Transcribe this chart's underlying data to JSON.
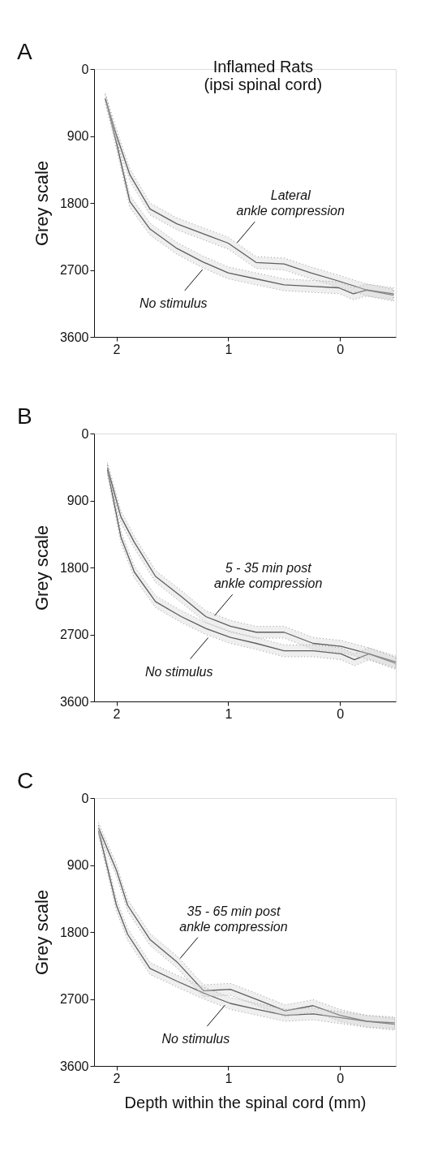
{
  "chart_data": [
    {
      "type": "line",
      "title": "A",
      "subtitle": "Inflamed Rats\n(ipsi spinal cord)",
      "ylabel": "Grey scale",
      "xlim": [
        2.2,
        -0.5
      ],
      "ylim": [
        3600,
        0
      ],
      "xticks": [
        2,
        1,
        0
      ],
      "yticks": [
        0,
        900,
        1800,
        2700,
        3600
      ],
      "grid": false,
      "legend": false,
      "marker": "none",
      "line_style": "solid",
      "annotations": [
        {
          "text": "Lateral\nankle compression",
          "x": 0.95,
          "y": 2380
        },
        {
          "text": "No stimulus",
          "x": 1.2,
          "y": 2650
        }
      ],
      "series": [
        {
          "color": "#222222",
          "x": [
            2.1,
            2.0,
            1.88,
            1.7,
            1.46,
            1.23,
            1.0,
            0.75,
            0.5,
            0.26,
            0.01,
            -0.24,
            -0.48
          ],
          "values": [
            400,
            890,
            1420,
            1880,
            2080,
            2210,
            2340,
            2600,
            2620,
            2740,
            2850,
            2970,
            3020
          ],
          "lower": [
            330,
            810,
            1340,
            1800,
            2000,
            2130,
            2260,
            2520,
            2540,
            2660,
            2770,
            2890,
            2940
          ],
          "upper": [
            470,
            970,
            1500,
            1960,
            2160,
            2290,
            2420,
            2680,
            2700,
            2820,
            2930,
            3050,
            3100
          ]
        },
        {
          "color": "#222222",
          "x": [
            2.09,
            2.0,
            1.88,
            1.7,
            1.46,
            1.23,
            1.0,
            0.75,
            0.5,
            0.26,
            0.01,
            -0.12,
            -0.24,
            -0.48
          ],
          "values": [
            440,
            990,
            1780,
            2150,
            2410,
            2590,
            2740,
            2820,
            2900,
            2920,
            2940,
            3020,
            2970,
            3040
          ],
          "lower": [
            370,
            910,
            1700,
            2070,
            2330,
            2510,
            2660,
            2740,
            2820,
            2840,
            2860,
            2940,
            2890,
            2960
          ],
          "upper": [
            510,
            1070,
            1860,
            2230,
            2490,
            2670,
            2820,
            2900,
            2980,
            3000,
            3020,
            3100,
            3050,
            3120
          ]
        }
      ]
    },
    {
      "type": "line",
      "title": "B",
      "ylabel": "Grey scale",
      "xlim": [
        2.2,
        -0.5
      ],
      "ylim": [
        3600,
        0
      ],
      "xticks": [
        2,
        1,
        0
      ],
      "yticks": [
        0,
        900,
        1800,
        2700,
        3600
      ],
      "grid": false,
      "legend": false,
      "marker": "none",
      "line_style": "solid",
      "annotations": [
        {
          "text": "5 - 35 min post\nankle compression",
          "x": 1.15,
          "y": 2490
        },
        {
          "text": "No stimulus",
          "x": 1.15,
          "y": 2700
        }
      ],
      "series": [
        {
          "color": "#222222",
          "x": [
            2.08,
            1.96,
            1.84,
            1.65,
            1.42,
            1.2,
            0.98,
            0.75,
            0.5,
            0.24,
            -0.01,
            -0.26,
            -0.5
          ],
          "values": [
            460,
            1120,
            1460,
            1920,
            2190,
            2460,
            2590,
            2670,
            2670,
            2820,
            2860,
            2960,
            3070
          ],
          "lower": [
            390,
            1040,
            1380,
            1840,
            2110,
            2380,
            2510,
            2590,
            2590,
            2740,
            2780,
            2880,
            2990
          ],
          "upper": [
            530,
            1200,
            1540,
            2000,
            2270,
            2540,
            2670,
            2750,
            2750,
            2900,
            2940,
            3040,
            3150
          ]
        },
        {
          "color": "#222222",
          "x": [
            2.08,
            1.96,
            1.84,
            1.65,
            1.42,
            1.2,
            0.98,
            0.75,
            0.5,
            0.24,
            -0.01,
            -0.13,
            -0.26,
            -0.5
          ],
          "values": [
            490,
            1390,
            1860,
            2260,
            2460,
            2620,
            2740,
            2820,
            2920,
            2920,
            2960,
            3040,
            2960,
            3090
          ],
          "lower": [
            420,
            1310,
            1780,
            2180,
            2380,
            2540,
            2660,
            2740,
            2840,
            2840,
            2880,
            2960,
            2880,
            3010
          ],
          "upper": [
            560,
            1470,
            1940,
            2340,
            2540,
            2700,
            2820,
            2900,
            3000,
            3000,
            3040,
            3120,
            3040,
            3170
          ]
        }
      ]
    },
    {
      "type": "line",
      "title": "C",
      "xlabel": "Depth within the spinal cord (mm)",
      "ylabel": "Grey scale",
      "xlim": [
        2.2,
        -0.5
      ],
      "ylim": [
        3600,
        0
      ],
      "xticks": [
        2,
        1,
        0
      ],
      "yticks": [
        0,
        900,
        1800,
        2700,
        3600
      ],
      "grid": false,
      "legend": false,
      "marker": "none",
      "line_style": "solid",
      "annotations": [
        {
          "text": "35 - 65 min post\nankle compression",
          "x": 1.46,
          "y": 2200
        },
        {
          "text": "No stimulus",
          "x": 1.0,
          "y": 2740
        }
      ],
      "series": [
        {
          "color": "#222222",
          "x": [
            2.16,
            2.0,
            1.9,
            1.7,
            1.46,
            1.22,
            0.98,
            0.74,
            0.49,
            0.24,
            0.0,
            -0.24,
            -0.49
          ],
          "values": [
            400,
            970,
            1440,
            1900,
            2200,
            2590,
            2570,
            2710,
            2860,
            2790,
            2920,
            3000,
            3020
          ],
          "lower": [
            330,
            890,
            1360,
            1820,
            2120,
            2510,
            2490,
            2630,
            2780,
            2710,
            2840,
            2920,
            2940
          ],
          "upper": [
            470,
            1050,
            1520,
            1980,
            2280,
            2670,
            2650,
            2790,
            2940,
            2870,
            3000,
            3080,
            3100
          ]
        },
        {
          "color": "#222222",
          "x": [
            2.16,
            2.0,
            1.9,
            1.7,
            1.46,
            1.22,
            0.98,
            0.74,
            0.49,
            0.24,
            0.0,
            -0.24,
            -0.49
          ],
          "values": [
            440,
            1440,
            1830,
            2290,
            2460,
            2620,
            2760,
            2840,
            2920,
            2900,
            2950,
            3000,
            3040
          ],
          "lower": [
            370,
            1360,
            1750,
            2210,
            2380,
            2540,
            2680,
            2760,
            2840,
            2820,
            2870,
            2920,
            2960
          ],
          "upper": [
            510,
            1520,
            1910,
            2370,
            2540,
            2700,
            2840,
            2920,
            3000,
            2980,
            3030,
            3080,
            3120
          ]
        }
      ]
    }
  ]
}
